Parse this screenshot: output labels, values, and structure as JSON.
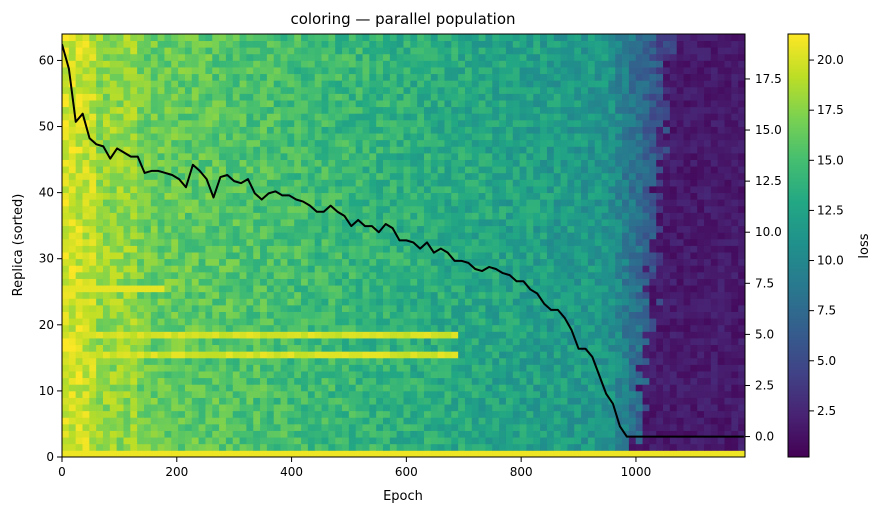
{
  "chart_data": {
    "type": "heatmap",
    "title": "coloring — parallel population",
    "xlabel": "Epoch",
    "ylabel": "Replica (sorted)",
    "colorbar_label": "loss",
    "colormap": "viridis",
    "xlim": [
      0,
      1190
    ],
    "ylim": [
      0,
      64
    ],
    "x_ticks": [
      0,
      200,
      400,
      600,
      800,
      1000
    ],
    "y_ticks": [
      0,
      10,
      20,
      30,
      40,
      50,
      60
    ],
    "right_axis": {
      "ylim": [
        -1.0,
        19.7
      ],
      "ticks": [
        0.0,
        2.5,
        5.0,
        7.5,
        10.0,
        12.5,
        15.0,
        17.5
      ],
      "tick_labels": [
        "0.0",
        "2.5",
        "5.0",
        "7.5",
        "10.0",
        "12.5",
        "15.0",
        "17.5"
      ]
    },
    "colorbar": {
      "range": [
        0.2,
        21.3
      ],
      "ticks": [
        2.5,
        5.0,
        7.5,
        10.0,
        12.5,
        15.0,
        17.5,
        20.0
      ],
      "tick_labels": [
        "2.5",
        "5.0",
        "7.5",
        "10.0",
        "12.5",
        "15.0",
        "17.5",
        "20.0"
      ]
    },
    "heatmap": {
      "epoch_bins": 100,
      "epoch_bin_width": 11.9,
      "replicas": 64,
      "description_rows": {
        "row_0_loss": 20.8,
        "rows_15_19_early_high_loss_until_epoch": 690
      }
    },
    "series": [
      {
        "color": "#000000",
        "axis": "right",
        "x": [
          0,
          12,
          24,
          36,
          48,
          60,
          72,
          84,
          96,
          108,
          120,
          132,
          144,
          156,
          168,
          180,
          192,
          204,
          216,
          228,
          240,
          252,
          264,
          276,
          288,
          300,
          312,
          324,
          336,
          348,
          360,
          372,
          384,
          396,
          408,
          420,
          432,
          444,
          456,
          468,
          480,
          492,
          504,
          516,
          528,
          540,
          552,
          564,
          576,
          588,
          600,
          612,
          624,
          636,
          648,
          660,
          672,
          684,
          696,
          708,
          720,
          732,
          744,
          756,
          768,
          780,
          792,
          804,
          816,
          828,
          840,
          852,
          864,
          876,
          888,
          900,
          912,
          924,
          936,
          948,
          960,
          972,
          984,
          996,
          1008,
          1020,
          1032,
          1044,
          1056,
          1068,
          1080,
          1092,
          1104,
          1116,
          1128,
          1140,
          1152,
          1164,
          1176,
          1188
        ],
        "y": [
          19.2,
          18.0,
          15.4,
          15.8,
          14.6,
          14.3,
          14.2,
          13.6,
          14.1,
          13.9,
          13.7,
          13.7,
          12.9,
          13.0,
          13.0,
          12.9,
          12.8,
          12.6,
          12.2,
          13.3,
          13.0,
          12.6,
          11.7,
          12.7,
          12.8,
          12.5,
          12.4,
          12.6,
          11.9,
          11.6,
          11.9,
          12.0,
          11.8,
          11.8,
          11.6,
          11.5,
          11.3,
          11.0,
          11.0,
          11.3,
          11.0,
          10.8,
          10.3,
          10.6,
          10.3,
          10.3,
          10.0,
          10.4,
          10.2,
          9.6,
          9.6,
          9.5,
          9.2,
          9.5,
          9.0,
          9.2,
          9.0,
          8.6,
          8.6,
          8.5,
          8.2,
          8.1,
          8.3,
          8.2,
          8.0,
          7.9,
          7.6,
          7.6,
          7.2,
          7.0,
          6.5,
          6.2,
          6.2,
          5.8,
          5.2,
          4.3,
          4.3,
          3.9,
          3.0,
          2.1,
          1.6,
          0.5,
          0.0,
          0.0,
          0.0,
          0.0,
          0.0,
          0.0,
          0.0,
          0.0,
          0.0,
          0.0,
          0.0,
          0.0,
          0.0,
          0.0,
          0.0,
          0.0,
          0.0,
          0.0
        ]
      }
    ]
  }
}
